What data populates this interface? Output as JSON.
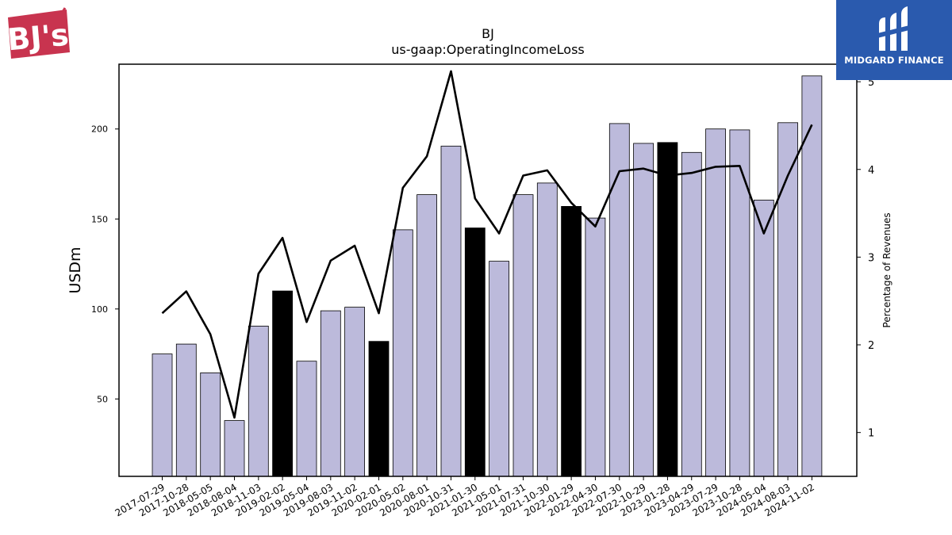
{
  "branding": {
    "company_logo_text": "BJ's",
    "company_logo_color": "#c8344f",
    "publisher_name": "MIDGARD FINANCE",
    "publisher_color": "#2a5aae"
  },
  "chart_data": {
    "type": "bar",
    "title": "BJ",
    "subtitle": "us-gaap:OperatingIncomeLoss",
    "ylabel": "USDm",
    "y2label": "Percentage of Revenues",
    "ylim": [
      7,
      236
    ],
    "y2lim": [
      0.5,
      5.2
    ],
    "yticks": [
      50,
      100,
      150,
      200
    ],
    "y2ticks": [
      1,
      2,
      3,
      4,
      5
    ],
    "categories": [
      "2017-07-29",
      "2017-10-28",
      "2018-05-05",
      "2018-08-04",
      "2018-11-03",
      "2019-02-02",
      "2019-05-04",
      "2019-08-03",
      "2019-11-02",
      "2020-02-01",
      "2020-05-02",
      "2020-08-01",
      "2020-10-31",
      "2021-01-30",
      "2021-05-01",
      "2021-07-31",
      "2021-10-30",
      "2022-01-29",
      "2022-04-30",
      "2022-07-30",
      "2022-10-29",
      "2023-01-28",
      "2023-04-29",
      "2023-07-29",
      "2023-10-28",
      "2024-05-04",
      "2024-08-03",
      "2024-11-02"
    ],
    "series": [
      {
        "type": "bar",
        "values": [
          75,
          80.5,
          64.5,
          38,
          90.5,
          110,
          71,
          99,
          101,
          82,
          144,
          163.5,
          190.5,
          145,
          126.5,
          163.5,
          170,
          157,
          150.5,
          203,
          192,
          192.5,
          187,
          200,
          199.5,
          160.5,
          203.5,
          229.5
        ],
        "highlighted": [
          false,
          false,
          false,
          false,
          false,
          true,
          false,
          false,
          false,
          true,
          false,
          false,
          false,
          true,
          false,
          false,
          false,
          true,
          false,
          false,
          false,
          true,
          false,
          false,
          false,
          false,
          false,
          false
        ]
      },
      {
        "type": "line",
        "axis": "right",
        "values": [
          2.36,
          2.61,
          2.12,
          1.17,
          2.81,
          3.22,
          2.26,
          2.96,
          3.13,
          2.36,
          3.79,
          4.15,
          5.12,
          3.67,
          3.27,
          3.93,
          3.99,
          3.62,
          3.35,
          3.98,
          4.01,
          3.93,
          3.96,
          4.03,
          4.04,
          3.27,
          3.93,
          4.51
        ]
      }
    ],
    "colors": {
      "bar": "#bcbadb",
      "bar_highlight": "#000000",
      "line": "#000000"
    },
    "grid": false
  }
}
